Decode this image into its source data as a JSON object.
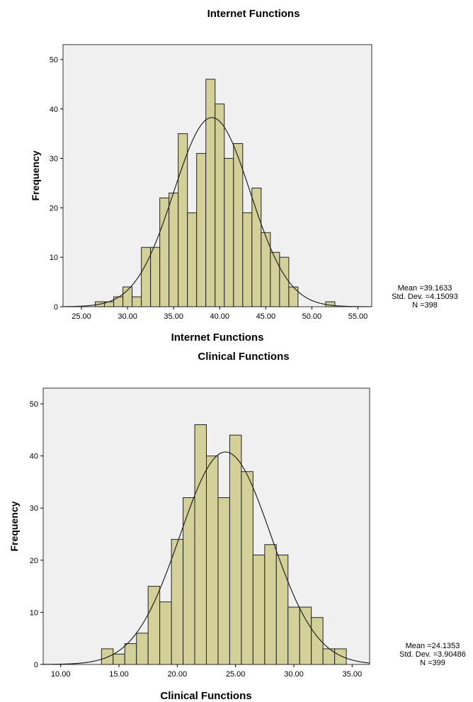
{
  "colors": {
    "bar": "#d4d09a",
    "bar_stroke": "#222222",
    "plot_background": "#f0f0f0"
  },
  "chart_data": [
    {
      "type": "bar",
      "subtype": "histogram",
      "title": "Internet Functions",
      "xlabel": "Internet Functions",
      "ylabel": "Frequency",
      "xlim": [
        23.0,
        56.5
      ],
      "ylim": [
        0,
        53
      ],
      "xticks": [
        "25.00",
        "30.00",
        "35.00",
        "40.00",
        "45.00",
        "50.00",
        "55.00"
      ],
      "yticks": [
        "0",
        "10",
        "20",
        "30",
        "40",
        "50"
      ],
      "bin_start": 26.5,
      "bin_width": 1,
      "values": [
        1,
        1,
        2,
        4,
        2,
        12,
        12,
        22,
        23,
        35,
        19,
        31,
        46,
        41,
        30,
        33,
        19,
        24,
        15,
        11,
        10,
        4,
        0,
        0,
        0,
        1
      ],
      "normal_curve": true,
      "stats": {
        "mean": "Mean =39.1633",
        "std": "Std. Dev. =4.15093",
        "n": "N =398"
      },
      "mean_value": 39.1633,
      "std_value": 4.15093,
      "n_value": 398
    },
    {
      "type": "bar",
      "subtype": "histogram",
      "title": "Clinical Functions",
      "xlabel": "Clinical Functions",
      "ylabel": "Frequency",
      "xlim": [
        8.5,
        36.5
      ],
      "ylim": [
        0,
        53
      ],
      "xticks": [
        "10.00",
        "15.00",
        "20.00",
        "25.00",
        "30.00",
        "35.00"
      ],
      "yticks": [
        "0",
        "10",
        "20",
        "30",
        "40",
        "50"
      ],
      "bin_start": 13.5,
      "bin_width": 1,
      "values": [
        3,
        2,
        4,
        6,
        15,
        12,
        24,
        32,
        46,
        40,
        32,
        44,
        37,
        21,
        23,
        21,
        11,
        11,
        9,
        3,
        3
      ],
      "normal_curve": true,
      "stats": {
        "mean": "Mean =24.1353",
        "std": "Std. Dev. =3.90486",
        "n": "N =399"
      },
      "mean_value": 24.1353,
      "std_value": 3.90486,
      "n_value": 399
    }
  ]
}
